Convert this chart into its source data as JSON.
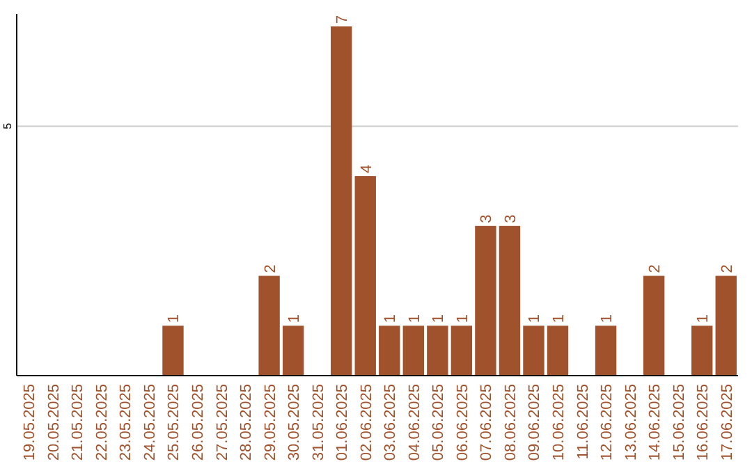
{
  "chart_data": {
    "type": "bar",
    "categories": [
      "19.05.2025",
      "20.05.2025",
      "21.05.2025",
      "22.05.2025",
      "23.05.2025",
      "24.05.2025",
      "25.05.2025",
      "26.05.2025",
      "27.05.2025",
      "28.05.2025",
      "29.05.2025",
      "30.05.2025",
      "31.05.2025",
      "01.06.2025",
      "02.06.2025",
      "03.06.2025",
      "04.06.2025",
      "05.06.2025",
      "06.06.2025",
      "07.06.2025",
      "08.06.2025",
      "09.06.2025",
      "10.06.2025",
      "11.06.2025",
      "12.06.2025",
      "13.06.2025",
      "14.06.2025",
      "15.06.2025",
      "16.06.2025",
      "17.06.2025"
    ],
    "values": [
      0,
      0,
      0,
      0,
      0,
      0,
      1,
      0,
      0,
      0,
      2,
      1,
      0,
      7,
      4,
      1,
      1,
      1,
      1,
      3,
      3,
      1,
      1,
      0,
      1,
      0,
      2,
      0,
      1,
      2
    ],
    "value_labels": [
      null,
      null,
      null,
      null,
      null,
      null,
      "1",
      null,
      null,
      null,
      "2",
      "1",
      null,
      "7",
      "4",
      "1",
      "1",
      "1",
      "1",
      "3",
      "3",
      "1",
      "1",
      null,
      "1",
      null,
      "2",
      null,
      "1",
      "2"
    ],
    "color": "#a0522d",
    "ylim": [
      0,
      7.25
    ],
    "yticks": [
      5
    ],
    "grid": "y"
  }
}
